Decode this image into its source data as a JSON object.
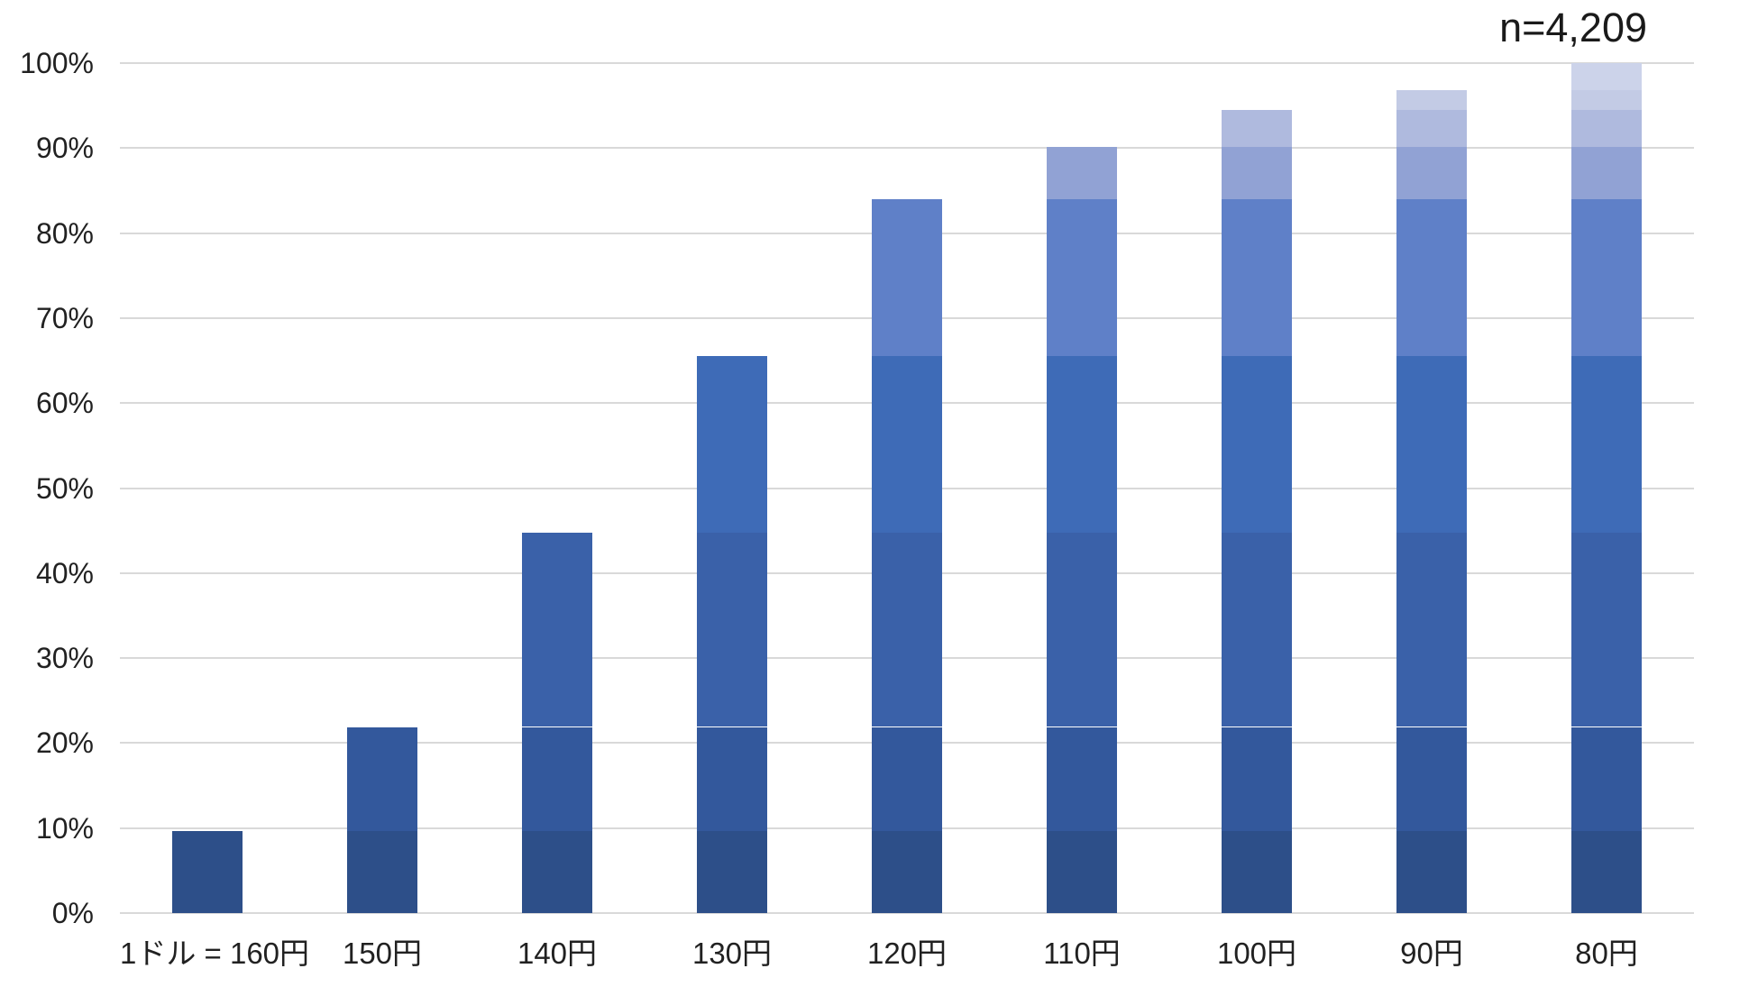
{
  "chart_data": {
    "type": "bar",
    "subtype": "stacked-cumulative",
    "title": "",
    "annotation": "n=4,209",
    "categories": [
      "1ドル = 160円",
      "150円",
      "140円",
      "130円",
      "120円",
      "110円",
      "100円",
      "90円",
      "80円"
    ],
    "cumulative_totals": [
      9.7,
      21.9,
      44.8,
      65.5,
      84.0,
      90.1,
      94.5,
      96.8,
      100.0
    ],
    "segment_boundaries": [
      0,
      9.7,
      21.9,
      44.8,
      65.5,
      84.0,
      90.1,
      94.5,
      96.8,
      100.0
    ],
    "series": [
      {
        "name": "threshold-160",
        "color": "#2d4f89",
        "values": [
          9.7,
          9.7,
          9.7,
          9.7,
          9.7,
          9.7,
          9.7,
          9.7,
          9.7
        ]
      },
      {
        "name": "threshold-150",
        "color": "#33589c",
        "values": [
          0,
          12.2,
          12.2,
          12.2,
          12.2,
          12.2,
          12.2,
          12.2,
          12.2
        ]
      },
      {
        "name": "threshold-140",
        "color": "#3a61a9",
        "values": [
          0,
          0,
          22.9,
          22.9,
          22.9,
          22.9,
          22.9,
          22.9,
          22.9
        ]
      },
      {
        "name": "threshold-130",
        "color": "#3e6bb7",
        "values": [
          0,
          0,
          0,
          20.7,
          20.7,
          20.7,
          20.7,
          20.7,
          20.7
        ]
      },
      {
        "name": "threshold-120",
        "color": "#5f80c8",
        "values": [
          0,
          0,
          0,
          0,
          18.5,
          18.5,
          18.5,
          18.5,
          18.5
        ]
      },
      {
        "name": "threshold-110",
        "color": "#91a2d4",
        "values": [
          0,
          0,
          0,
          0,
          0,
          6.1,
          6.1,
          6.1,
          6.1
        ]
      },
      {
        "name": "threshold-100",
        "color": "#afbade",
        "values": [
          0,
          0,
          0,
          0,
          0,
          0,
          4.4,
          4.4,
          4.4
        ]
      },
      {
        "name": "threshold-90",
        "color": "#c3cbe5",
        "values": [
          0,
          0,
          0,
          0,
          0,
          0,
          0,
          2.3,
          2.3
        ]
      },
      {
        "name": "threshold-80",
        "color": "#ccd3ea",
        "values": [
          0,
          0,
          0,
          0,
          0,
          0,
          0,
          0,
          3.2
        ]
      }
    ],
    "y_axis": {
      "range": [
        0,
        100
      ],
      "ticks": [
        {
          "value": 0,
          "label": "0%"
        },
        {
          "value": 10,
          "label": "10%"
        },
        {
          "value": 20,
          "label": "20%"
        },
        {
          "value": 30,
          "label": "30%"
        },
        {
          "value": 40,
          "label": "40%"
        },
        {
          "value": 50,
          "label": "50%"
        },
        {
          "value": 60,
          "label": "60%"
        },
        {
          "value": 70,
          "label": "70%"
        },
        {
          "value": 80,
          "label": "80%"
        },
        {
          "value": 90,
          "label": "90%"
        },
        {
          "value": 100,
          "label": "100%"
        }
      ]
    },
    "x_axis": {
      "label": ""
    },
    "grid": true,
    "legend": "none",
    "style": {
      "gridline_color": "#d9d9d9",
      "text_color": "#212121",
      "annotation_color": "#1a1a1a",
      "background": "#ffffff"
    }
  }
}
